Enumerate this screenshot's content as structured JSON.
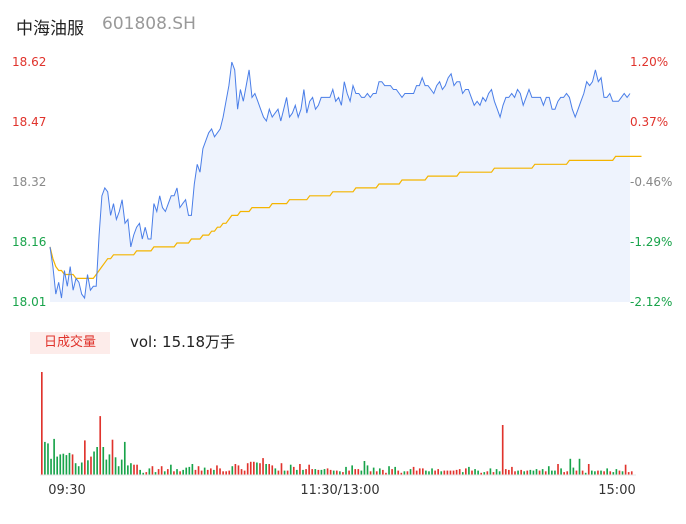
{
  "header": {
    "name": "中海油服",
    "code": "601808.SH"
  },
  "volume_panel": {
    "badge": "日成交量",
    "vol_text": "vol: 15.18万手"
  },
  "chart_data": [
    {
      "type": "line",
      "title": "",
      "x_ticks": [
        "09:30",
        "11:30/13:00",
        "15:00"
      ],
      "y_ticks_left": [
        "18.62",
        "18.47",
        "18.32",
        "18.16",
        "18.01"
      ],
      "y_ticks_right": [
        "1.20%",
        "0.37%",
        "-0.46%",
        "-1.29%",
        "-2.12%"
      ],
      "ylim": [
        18.01,
        18.62
      ],
      "ylim_pct": [
        -2.12,
        1.2
      ],
      "prev_close": 18.4,
      "colors": {
        "price": "#4a7ee8",
        "avg": "#f4b400",
        "up": "#e0332c",
        "down": "#18a34a",
        "neutral": "#888888"
      },
      "series": [
        {
          "values": [
            18.15,
            18.1,
            18.03,
            18.06,
            18.02,
            18.09,
            18.05,
            18.1,
            18.04,
            18.07,
            18.06,
            18.03,
            18.02,
            18.08,
            18.04,
            18.05,
            18.05,
            18.18,
            18.28,
            18.3,
            18.29,
            18.23,
            18.26,
            18.22,
            18.24,
            18.27,
            18.21,
            18.22,
            18.15,
            18.18,
            18.2,
            18.21,
            18.17,
            18.2,
            18.17,
            18.17,
            18.26,
            18.24,
            18.28,
            18.25,
            18.24,
            18.26,
            18.28,
            18.28,
            18.3,
            18.25,
            18.26,
            18.27,
            18.23,
            18.23,
            18.31,
            18.36,
            18.34,
            18.4,
            18.42,
            18.44,
            18.45,
            18.43,
            18.44,
            18.45,
            18.48,
            18.52,
            18.56,
            18.62,
            18.6,
            18.5,
            18.55,
            18.52,
            18.56,
            18.6,
            18.53,
            18.54,
            18.52,
            18.5,
            18.48,
            18.47,
            18.5,
            18.48,
            18.49,
            18.5,
            18.47,
            18.5,
            18.53,
            18.48,
            18.49,
            18.51,
            18.48,
            18.5,
            18.55,
            18.49,
            18.52,
            18.53,
            18.5,
            18.51,
            18.53,
            18.53,
            18.53,
            18.53,
            18.55,
            18.52,
            18.53,
            18.51,
            18.57,
            18.54,
            18.52,
            18.56,
            18.54,
            18.54,
            18.53,
            18.53,
            18.54,
            18.53,
            18.54,
            18.54,
            18.57,
            18.57,
            18.56,
            18.56,
            18.56,
            18.55,
            18.55,
            18.54,
            18.53,
            18.54,
            18.54,
            18.54,
            18.54,
            18.56,
            18.56,
            18.58,
            18.56,
            18.56,
            18.55,
            18.54,
            18.56,
            18.57,
            18.55,
            18.56,
            18.58,
            18.59,
            18.56,
            18.57,
            18.57,
            18.54,
            18.55,
            18.55,
            18.53,
            18.51,
            18.52,
            18.51,
            18.53,
            18.52,
            18.54,
            18.55,
            18.52,
            18.5,
            18.48,
            18.51,
            18.53,
            18.53,
            18.54,
            18.53,
            18.55,
            18.54,
            18.51,
            18.53,
            18.55,
            18.53,
            18.53,
            18.53,
            18.53,
            18.51,
            18.53,
            18.53,
            18.5,
            18.5,
            18.52,
            18.53,
            18.53,
            18.54,
            18.53,
            18.5,
            18.48,
            18.5,
            18.52,
            18.54,
            18.57,
            18.56,
            18.57,
            18.6,
            18.57,
            18.58,
            18.53,
            18.53,
            18.54,
            18.52,
            18.52,
            18.52,
            18.53,
            18.54,
            18.53,
            18.54
          ]
        },
        {
          "values": [
            18.15,
            18.12,
            18.1,
            18.09,
            18.09,
            18.08,
            18.08,
            18.08,
            18.08,
            18.07,
            18.07,
            18.07,
            18.07,
            18.07,
            18.07,
            18.07,
            18.08,
            18.09,
            18.1,
            18.11,
            18.12,
            18.12,
            18.13,
            18.13,
            18.13,
            18.13,
            18.13,
            18.13,
            18.13,
            18.13,
            18.14,
            18.14,
            18.14,
            18.14,
            18.14,
            18.14,
            18.15,
            18.15,
            18.15,
            18.15,
            18.15,
            18.15,
            18.15,
            18.15,
            18.16,
            18.16,
            18.16,
            18.16,
            18.16,
            18.17,
            18.17,
            18.17,
            18.17,
            18.18,
            18.18,
            18.18,
            18.19,
            18.19,
            18.2,
            18.2,
            18.21,
            18.21,
            18.22,
            18.23,
            18.23,
            18.23,
            18.24,
            18.24,
            18.24,
            18.24,
            18.25,
            18.25,
            18.25,
            18.25,
            18.25,
            18.25,
            18.25,
            18.26,
            18.26,
            18.26,
            18.26,
            18.26,
            18.26,
            18.27,
            18.27,
            18.27,
            18.27,
            18.27,
            18.27,
            18.27,
            18.28,
            18.28,
            18.28,
            18.28,
            18.28,
            18.28,
            18.28,
            18.28,
            18.29,
            18.29,
            18.29,
            18.29,
            18.29,
            18.29,
            18.29,
            18.29,
            18.3,
            18.3,
            18.3,
            18.3,
            18.3,
            18.3,
            18.3,
            18.3,
            18.31,
            18.31,
            18.31,
            18.31,
            18.31,
            18.31,
            18.31,
            18.31,
            18.32,
            18.32,
            18.32,
            18.32,
            18.32,
            18.32,
            18.32,
            18.32,
            18.32,
            18.33,
            18.33,
            18.33,
            18.33,
            18.33,
            18.33,
            18.33,
            18.33,
            18.33,
            18.33,
            18.33,
            18.34,
            18.34,
            18.34,
            18.34,
            18.34,
            18.34,
            18.34,
            18.34,
            18.34,
            18.34,
            18.34,
            18.34,
            18.35,
            18.35,
            18.35,
            18.35,
            18.35,
            18.35,
            18.35,
            18.35,
            18.35,
            18.35,
            18.35,
            18.35,
            18.35,
            18.35,
            18.36,
            18.36,
            18.36,
            18.36,
            18.36,
            18.36,
            18.36,
            18.36,
            18.36,
            18.36,
            18.36,
            18.36,
            18.37,
            18.37,
            18.37,
            18.37,
            18.37,
            18.37,
            18.37,
            18.37,
            18.37,
            18.37,
            18.37,
            18.37,
            18.37,
            18.37,
            18.37,
            18.37,
            18.38,
            18.38,
            18.38,
            18.38,
            18.38,
            18.38,
            18.38,
            18.38,
            18.38,
            18.38
          ]
        }
      ]
    },
    {
      "type": "bar",
      "title": "",
      "values": [
        14.0,
        4.5,
        4.3,
        2.2,
        4.9,
        2.5,
        2.8,
        2.9,
        2.7,
        3.0,
        2.8,
        1.6,
        1.2,
        1.7,
        4.7,
        2.0,
        2.5,
        3.2,
        3.8,
        8.0,
        3.8,
        2.1,
        2.8,
        4.8,
        2.4,
        1.2,
        2.1,
        4.5,
        1.3,
        1.6,
        1.4,
        1.4,
        0.7,
        0.3,
        0.4,
        0.9,
        1.2,
        0.4,
        0.8,
        1.2,
        0.5,
        0.8,
        1.4,
        0.5,
        0.8,
        0.5,
        0.7,
        1.0,
        1.1,
        1.5,
        0.7,
        1.2,
        0.6,
        1.0,
        0.7,
        0.9,
        0.7,
        1.3,
        0.9,
        0.5,
        0.5,
        0.6,
        1.2,
        1.5,
        1.3,
        0.8,
        0.6,
        1.6,
        1.8,
        1.8,
        1.7,
        1.6,
        2.3,
        1.5,
        1.5,
        1.3,
        0.9,
        0.6,
        1.6,
        0.6,
        0.6,
        1.4,
        1.1,
        0.7,
        1.5,
        0.7,
        0.8,
        1.4,
        0.8,
        0.8,
        0.7,
        0.7,
        0.8,
        0.9,
        0.7,
        0.6,
        0.6,
        0.5,
        0.4,
        1.1,
        0.6,
        1.3,
        0.8,
        0.8,
        0.6,
        1.9,
        1.3,
        0.5,
        1.0,
        0.5,
        0.9,
        0.7,
        0.3,
        1.2,
        0.8,
        1.1,
        0.6,
        0.3,
        0.5,
        0.5,
        0.8,
        1.1,
        0.6,
        0.9,
        0.9,
        0.6,
        0.5,
        0.9,
        0.6,
        0.8,
        0.5,
        0.6,
        0.6,
        0.6,
        0.6,
        0.7,
        0.8,
        0.4,
        0.9,
        1.1,
        0.6,
        0.8,
        0.6,
        0.3,
        0.4,
        0.5,
        0.9,
        0.4,
        0.8,
        0.5,
        6.8,
        0.8,
        0.7,
        1.1,
        0.5,
        0.6,
        0.7,
        0.5,
        0.6,
        0.7,
        0.6,
        0.8,
        0.6,
        0.8,
        0.5,
        1.2,
        0.6,
        0.6,
        1.5,
        0.9,
        0.4,
        0.5,
        2.2,
        1.0,
        0.6,
        2.2,
        0.6,
        0.3,
        1.5,
        0.6,
        0.5,
        0.6,
        0.6,
        0.5,
        0.9,
        0.5,
        0.4,
        0.8,
        0.6,
        0.5,
        1.4,
        0.4,
        0.5
      ],
      "dirs": [
        1,
        -1,
        -1,
        -1,
        -1,
        -1,
        -1,
        -1,
        -1,
        -1,
        1,
        -1,
        -1,
        -1,
        1,
        -1,
        1,
        -1,
        -1,
        1,
        -1,
        -1,
        -1,
        1,
        -1,
        -1,
        -1,
        -1,
        -1,
        -1,
        1,
        1,
        -1,
        -1,
        1,
        -1,
        1,
        -1,
        1,
        1,
        -1,
        1,
        -1,
        1,
        -1,
        1,
        -1,
        -1,
        -1,
        -1,
        1,
        1,
        1,
        -1,
        1,
        1,
        -1,
        1,
        1,
        1,
        1,
        1,
        -1,
        1,
        1,
        1,
        1,
        1,
        1,
        1,
        -1,
        1,
        1,
        -1,
        1,
        1,
        -1,
        1,
        1,
        -1,
        1,
        -1,
        1,
        -1,
        1,
        -1,
        1,
        1,
        1,
        -1,
        1,
        -1,
        -1,
        1,
        1,
        -1,
        1,
        -1,
        1,
        -1,
        1,
        -1,
        1,
        1,
        -1,
        -1,
        -1,
        1,
        -1,
        1,
        -1,
        1,
        1,
        -1,
        1,
        -1,
        1,
        1,
        -1,
        1,
        -1,
        1,
        1,
        1,
        1,
        -1,
        -1,
        -1,
        1,
        1,
        -1,
        1,
        1,
        1,
        1,
        1,
        1,
        -1,
        1,
        -1,
        1,
        -1,
        -1,
        1,
        -1,
        1,
        -1,
        1,
        -1,
        -1,
        1,
        1,
        1,
        1,
        1,
        -1,
        1,
        -1,
        1,
        -1,
        -1,
        -1,
        1,
        -1,
        1,
        -1,
        -1,
        -1,
        1,
        -1,
        1,
        1,
        -1,
        -1,
        1,
        -1,
        1,
        -1,
        1,
        -1,
        -1,
        1,
        -1,
        1,
        -1,
        1,
        -1,
        -1,
        1,
        -1,
        1,
        1,
        1,
        1,
        -1,
        1,
        0
      ]
    }
  ]
}
